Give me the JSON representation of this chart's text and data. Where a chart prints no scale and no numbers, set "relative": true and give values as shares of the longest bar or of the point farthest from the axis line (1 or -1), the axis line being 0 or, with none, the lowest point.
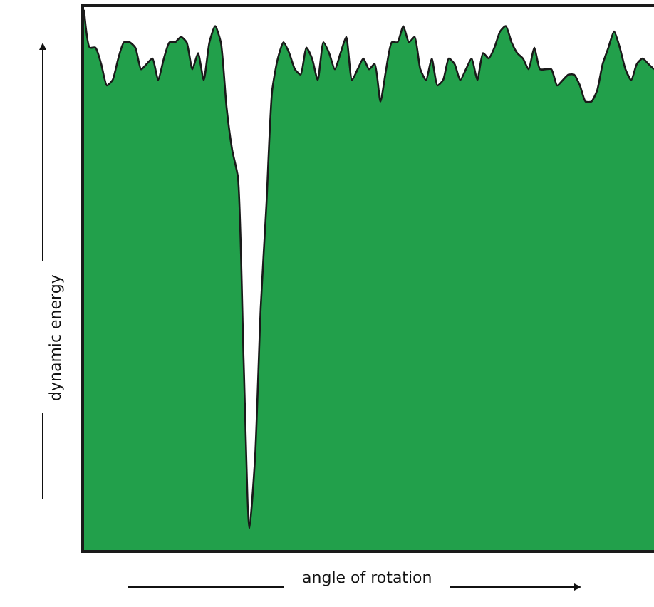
{
  "chart_data": {
    "type": "area",
    "relative": true,
    "xlabel": "angle of rotation",
    "ylabel": "dynamic energy",
    "color": "#22a04b",
    "categories": [
      null,
      null,
      null,
      null,
      null,
      null,
      null,
      null,
      null,
      null,
      null,
      null,
      null,
      null,
      null,
      null,
      null,
      null,
      null,
      null,
      null,
      null,
      null,
      null,
      null,
      null,
      null,
      null,
      null,
      null,
      null,
      null,
      null,
      null,
      null,
      null,
      null,
      null,
      null,
      null,
      null,
      null,
      null,
      null,
      null,
      null,
      null,
      null,
      null,
      null,
      null,
      null,
      null,
      null,
      null,
      null,
      null,
      null,
      null,
      null,
      null,
      null,
      null,
      null,
      null,
      null,
      null,
      null,
      null,
      null,
      null,
      null,
      null,
      null,
      null,
      null,
      null,
      null,
      null,
      null,
      null,
      null,
      null,
      null,
      null,
      null,
      null,
      null,
      null,
      null,
      null,
      null,
      null,
      null,
      null,
      null,
      null,
      null,
      null,
      null,
      null
    ],
    "values": [
      1.0,
      0.93,
      0.93,
      0.9,
      0.86,
      0.87,
      0.91,
      0.94,
      0.94,
      0.93,
      0.89,
      0.9,
      0.91,
      0.87,
      0.91,
      0.94,
      0.94,
      0.95,
      0.94,
      0.89,
      0.92,
      0.87,
      0.94,
      0.97,
      0.94,
      0.82,
      0.74,
      0.69,
      0.35,
      0.04,
      0.17,
      0.45,
      0.64,
      0.85,
      0.91,
      0.94,
      0.92,
      0.89,
      0.88,
      0.93,
      0.91,
      0.87,
      0.94,
      0.92,
      0.89,
      0.92,
      0.95,
      0.87,
      0.89,
      0.91,
      0.89,
      0.9,
      0.83,
      0.89,
      0.94,
      0.94,
      0.97,
      0.94,
      0.95,
      0.89,
      0.87,
      0.91,
      0.86,
      0.87,
      0.91,
      0.9,
      0.87,
      0.89,
      0.91,
      0.87,
      0.92,
      0.91,
      0.93,
      0.96,
      0.97,
      0.94,
      0.92,
      0.91,
      0.89,
      0.93,
      0.89,
      0.89,
      0.89,
      0.86,
      0.87,
      0.88,
      0.88,
      0.86,
      0.83,
      0.83,
      0.85,
      0.9,
      0.93,
      0.96,
      0.93,
      0.89,
      0.87,
      0.9,
      0.91,
      0.9,
      0.89
    ]
  }
}
